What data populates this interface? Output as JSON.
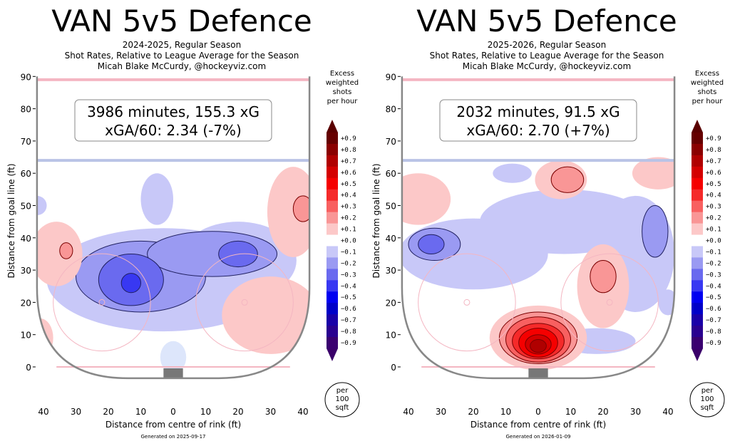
{
  "chart_data": [
    {
      "type": "heatmap",
      "title": "VAN 5v5 Defence",
      "subtitle": [
        "2024-2025, Regular Season",
        "Shot Rates, Relative to League Average for the Season",
        "Micah Blake McCurdy, @hockeyviz.com"
      ],
      "annotation": [
        "3986 minutes, 155.3 xG",
        "xGA/60: 2.34 (-7%)"
      ],
      "xlabel": "Distance from centre of rink (ft)",
      "ylabel": "Distance from goal line (ft)",
      "xticks": [
        "40",
        "30",
        "20",
        "10",
        "0",
        "10",
        "20",
        "30",
        "40"
      ],
      "yticks": [
        "0",
        "10",
        "20",
        "30",
        "40",
        "50",
        "60",
        "70",
        "80",
        "90"
      ],
      "xlim": [
        -42,
        42
      ],
      "ylim": [
        0,
        90
      ],
      "colorbar": {
        "title": [
          "Excess",
          "weighted",
          "shots",
          "per hour"
        ],
        "ticks": [
          "+0.9",
          "+0.8",
          "+0.7",
          "+0.6",
          "+0.5",
          "+0.4",
          "+0.3",
          "+0.2",
          "+0.1",
          "+0.0",
          "−0.1",
          "−0.2",
          "−0.3",
          "−0.4",
          "−0.5",
          "−0.6",
          "−0.7",
          "−0.8",
          "−0.9"
        ]
      },
      "unit_badge": [
        "per",
        "100",
        "sqft"
      ],
      "footer": "Generated on 2025-09-17",
      "regions": [
        {
          "v": -0.1,
          "x": -3,
          "y": 27,
          "rx": 36,
          "ry": 16
        },
        {
          "v": -0.1,
          "x": 20,
          "y": 33,
          "rx": 18,
          "ry": 12
        },
        {
          "v": -0.1,
          "x": -5,
          "y": 52,
          "rx": 5,
          "ry": 8
        },
        {
          "v": -0.1,
          "x": -42,
          "y": 50,
          "rx": 3,
          "ry": 3
        },
        {
          "v": -0.05,
          "x": 0,
          "y": 3,
          "rx": 4,
          "ry": 5
        },
        {
          "v": -0.2,
          "x": -10,
          "y": 28,
          "rx": 20,
          "ry": 11
        },
        {
          "v": -0.2,
          "x": 12,
          "y": 35,
          "rx": 20,
          "ry": 7
        },
        {
          "v": -0.3,
          "x": -13,
          "y": 27,
          "rx": 10,
          "ry": 8
        },
        {
          "v": -0.3,
          "x": 20,
          "y": 35,
          "rx": 6,
          "ry": 4
        },
        {
          "v": -0.4,
          "x": -13,
          "y": 26,
          "rx": 3,
          "ry": 3
        },
        {
          "v": 0.1,
          "x": -36,
          "y": 35,
          "rx": 8,
          "ry": 10
        },
        {
          "v": 0.2,
          "x": -33,
          "y": 36,
          "rx": 2,
          "ry": 2.5
        },
        {
          "v": 0.1,
          "x": 37,
          "y": 48,
          "rx": 8,
          "ry": 14
        },
        {
          "v": 0.2,
          "x": 40,
          "y": 49,
          "rx": 3,
          "ry": 4
        },
        {
          "v": 0.1,
          "x": 30,
          "y": 16,
          "rx": 15,
          "ry": 12
        },
        {
          "v": 0.1,
          "x": -41,
          "y": 9,
          "rx": 4,
          "ry": 6
        }
      ]
    },
    {
      "type": "heatmap",
      "title": "VAN 5v5 Defence",
      "subtitle": [
        "2025-2026, Regular Season",
        "Shot Rates, Relative to League Average for the Season",
        "Micah Blake McCurdy, @hockeyviz.com"
      ],
      "annotation": [
        "2032 minutes, 91.5 xG",
        "xGA/60: 2.70 (+7%)"
      ],
      "xlabel": "Distance from centre of rink (ft)",
      "ylabel": "Distance from goal line (ft)",
      "xticks": [
        "40",
        "30",
        "20",
        "10",
        "0",
        "10",
        "20",
        "30",
        "40"
      ],
      "yticks": [
        "0",
        "10",
        "20",
        "30",
        "40",
        "50",
        "60",
        "70",
        "80",
        "90"
      ],
      "xlim": [
        -42,
        42
      ],
      "ylim": [
        0,
        90
      ],
      "colorbar": {
        "title": [
          "Excess",
          "weighted",
          "shots",
          "per hour"
        ],
        "ticks": [
          "+0.9",
          "+0.8",
          "+0.7",
          "+0.6",
          "+0.5",
          "+0.4",
          "+0.3",
          "+0.2",
          "+0.1",
          "+0.0",
          "−0.1",
          "−0.2",
          "−0.3",
          "−0.4",
          "−0.5",
          "−0.6",
          "−0.7",
          "−0.8",
          "−0.9"
        ]
      },
      "unit_badge": [
        "per",
        "100",
        "sqft"
      ],
      "footer": "Generated on 2026-01-09",
      "regions": [
        {
          "v": -0.1,
          "x": -20,
          "y": 35,
          "rx": 23,
          "ry": 11
        },
        {
          "v": -0.1,
          "x": 8,
          "y": 45,
          "rx": 26,
          "ry": 10
        },
        {
          "v": -0.1,
          "x": 30,
          "y": 35,
          "rx": 12,
          "ry": 18
        },
        {
          "v": -0.1,
          "x": 18,
          "y": 8,
          "rx": 12,
          "ry": 4
        },
        {
          "v": -0.1,
          "x": 40,
          "y": 20,
          "rx": 3,
          "ry": 4
        },
        {
          "v": -0.1,
          "x": -8,
          "y": 60,
          "rx": 6,
          "ry": 3
        },
        {
          "v": -0.2,
          "x": -32,
          "y": 38,
          "rx": 8,
          "ry": 5
        },
        {
          "v": -0.2,
          "x": 36,
          "y": 42,
          "rx": 4,
          "ry": 8
        },
        {
          "v": -0.3,
          "x": -33,
          "y": 38,
          "rx": 4,
          "ry": 3
        },
        {
          "v": 0.1,
          "x": -37,
          "y": 52,
          "rx": 10,
          "ry": 8
        },
        {
          "v": 0.1,
          "x": 7,
          "y": 58,
          "rx": 8,
          "ry": 6
        },
        {
          "v": 0.2,
          "x": 9,
          "y": 58,
          "rx": 5,
          "ry": 4
        },
        {
          "v": 0.1,
          "x": 37,
          "y": 60,
          "rx": 8,
          "ry": 5
        },
        {
          "v": 0.1,
          "x": 20,
          "y": 25,
          "rx": 8,
          "ry": 13
        },
        {
          "v": 0.2,
          "x": 20,
          "y": 28,
          "rx": 4,
          "ry": 5
        },
        {
          "v": 0.1,
          "x": 0,
          "y": 9,
          "rx": 15,
          "ry": 10
        },
        {
          "v": 0.2,
          "x": 0,
          "y": 9,
          "rx": 12,
          "ry": 8
        },
        {
          "v": 0.3,
          "x": 0,
          "y": 8.5,
          "rx": 10,
          "ry": 7
        },
        {
          "v": 0.4,
          "x": 0,
          "y": 8,
          "rx": 8,
          "ry": 5.5
        },
        {
          "v": 0.5,
          "x": 0,
          "y": 7.5,
          "rx": 6,
          "ry": 4.5
        },
        {
          "v": 0.6,
          "x": 0,
          "y": 7,
          "rx": 4,
          "ry": 3
        },
        {
          "v": 0.7,
          "x": 0,
          "y": 6.5,
          "rx": 2.5,
          "ry": 2
        }
      ]
    }
  ],
  "colors": {
    "line_red": "#f4b6c2",
    "line_blue": "#b9c3e6",
    "board": "#888888"
  }
}
